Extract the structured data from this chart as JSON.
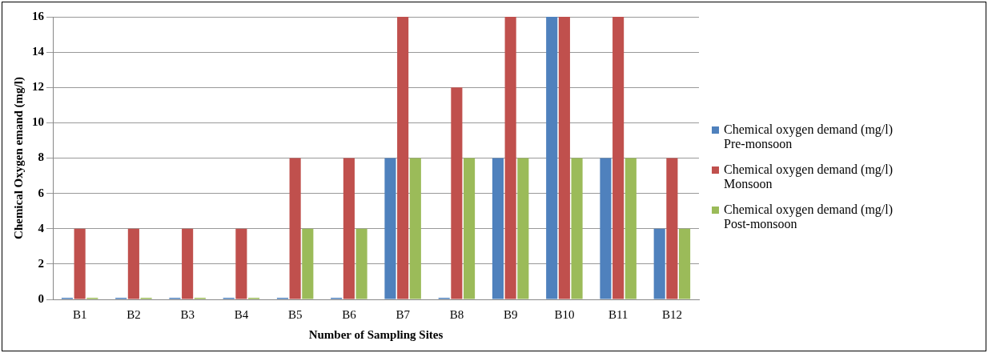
{
  "chart_data": {
    "type": "bar",
    "xlabel": "Number of Sampling Sites",
    "ylabel": "Chemical Oxygen emand (mg/l)",
    "categories": [
      "B1",
      "B2",
      "B3",
      "B4",
      "B5",
      "B6",
      "B7",
      "B8",
      "B9",
      "B10",
      "B11",
      "B12"
    ],
    "series": [
      {
        "name": "Chemical oxygen demand (mg/l) Pre-monsoon",
        "color": "#4f81bd",
        "values": [
          0,
          0,
          0,
          0,
          0,
          0,
          8,
          0,
          8,
          16,
          8,
          4
        ]
      },
      {
        "name": "Chemical oxygen demand (mg/l) Monsoon",
        "color": "#c0504d",
        "values": [
          4,
          4,
          4,
          4,
          8,
          8,
          16,
          12,
          16,
          16,
          16,
          8
        ]
      },
      {
        "name": "Chemical oxygen demand (mg/l) Post-monsoon",
        "color": "#9bbb59",
        "values": [
          0,
          0,
          0,
          0,
          4,
          4,
          8,
          8,
          8,
          8,
          8,
          4
        ]
      }
    ],
    "ylim": [
      0,
      16
    ],
    "yticks": [
      0,
      2,
      4,
      6,
      8,
      10,
      12,
      14,
      16
    ],
    "grid": "y",
    "legend": "right"
  }
}
